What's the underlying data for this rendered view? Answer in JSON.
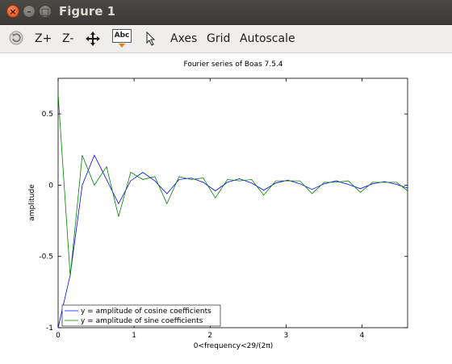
{
  "window": {
    "title": "Figure 1"
  },
  "toolbar": {
    "zoom_in_label": "Z+",
    "zoom_out_label": "Z-",
    "text_tool_label": "Abc",
    "axes_label": "Axes",
    "grid_label": "Grid",
    "autoscale_label": "Autoscale"
  },
  "colors": {
    "titlebar": "#3d3c39",
    "toolbar": "#efeeec",
    "cosine_series": "#0000ff",
    "sine_series": "#008000"
  },
  "chart_data": {
    "type": "line",
    "title": "Fourier series of Boas 7.5.4",
    "xlabel": "0<frequency<29/(2π)",
    "ylabel": "amplitude",
    "xlim": [
      0,
      4.6
    ],
    "ylim": [
      -1,
      0.75
    ],
    "xticks": [
      0,
      1,
      2,
      3,
      4
    ],
    "xtick_labels": [
      "0",
      "1",
      "2",
      "3",
      "4"
    ],
    "yticks": [
      0.5,
      0,
      -0.5,
      -1
    ],
    "ytick_labels": [
      "0.5",
      "0",
      "-0.5",
      "-1"
    ],
    "grid": false,
    "legend_position": "bottom-left",
    "series": [
      {
        "name": "y = amplitude of cosine coefficients",
        "color": "#0000ff",
        "x": [
          0,
          0.159,
          0.318,
          0.477,
          0.637,
          0.796,
          0.955,
          1.114,
          1.273,
          1.432,
          1.592,
          1.751,
          1.91,
          2.069,
          2.228,
          2.387,
          2.546,
          2.706,
          2.865,
          3.024,
          3.183,
          3.342,
          3.501,
          3.661,
          3.82,
          3.979,
          4.138,
          4.297,
          4.456,
          4.615
        ],
        "y": [
          -1.0,
          -0.63,
          0.0,
          0.21,
          0.04,
          -0.13,
          0.03,
          0.09,
          0.03,
          -0.06,
          0.04,
          0.05,
          0.02,
          -0.04,
          0.02,
          0.045,
          0.015,
          -0.035,
          0.015,
          0.035,
          0.01,
          -0.03,
          0.01,
          0.03,
          0.005,
          -0.025,
          0.01,
          0.025,
          0.005,
          -0.02
        ]
      },
      {
        "name": "y = amplitude of sine coefficients",
        "color": "#008000",
        "x": [
          0,
          0.159,
          0.318,
          0.477,
          0.637,
          0.796,
          0.955,
          1.114,
          1.273,
          1.432,
          1.592,
          1.751,
          1.91,
          2.069,
          2.228,
          2.387,
          2.546,
          2.706,
          2.865,
          3.024,
          3.183,
          3.342,
          3.501,
          3.661,
          3.82,
          3.979,
          4.138,
          4.297,
          4.456,
          4.615
        ],
        "y": [
          0.64,
          -0.64,
          0.21,
          0.0,
          0.13,
          -0.22,
          0.09,
          0.04,
          0.06,
          -0.13,
          0.06,
          0.04,
          0.05,
          -0.09,
          0.04,
          0.03,
          0.04,
          -0.07,
          0.03,
          0.03,
          0.03,
          -0.06,
          0.02,
          0.02,
          0.03,
          -0.05,
          0.02,
          0.02,
          0.02,
          -0.04
        ]
      }
    ]
  }
}
